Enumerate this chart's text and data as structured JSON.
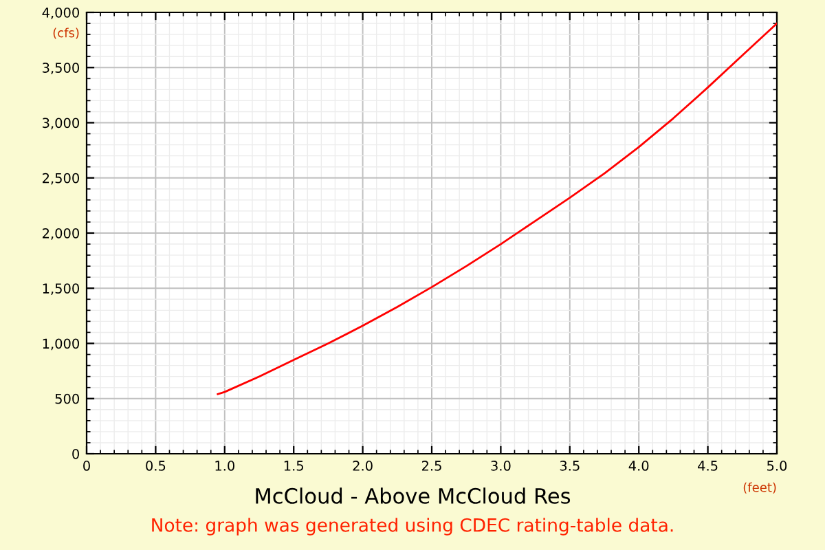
{
  "chart_data": {
    "type": "line",
    "title": "McCloud - Above McCloud Res",
    "xlabel": "(feet)",
    "ylabel": "(cfs)",
    "annotations": [
      "Note: graph was generated using CDEC rating-table data."
    ],
    "x": [
      0.95,
      1.0,
      1.25,
      1.5,
      1.75,
      2.0,
      2.25,
      2.5,
      2.75,
      3.0,
      3.25,
      3.5,
      3.75,
      4.0,
      4.25,
      4.5,
      4.75,
      5.0
    ],
    "series": [
      {
        "color": "#ff0000",
        "values": [
          540,
          560,
          700,
          850,
          1000,
          1160,
          1330,
          1510,
          1700,
          1900,
          2110,
          2320,
          2540,
          2780,
          3040,
          3320,
          3610,
          3900
        ]
      }
    ],
    "xlim": [
      0,
      5
    ],
    "xticks": [
      0,
      0.5,
      {
        "value": 1,
        "label": "1.0"
      },
      1.5,
      {
        "value": 2,
        "label": "2.0"
      },
      2.5,
      {
        "value": 3,
        "label": "3.0"
      },
      3.5,
      {
        "value": 4,
        "label": "4.0"
      },
      4.5,
      {
        "value": 5,
        "label": "5.0"
      }
    ],
    "ylim": [
      0,
      4000
    ],
    "yticks": [
      0,
      500,
      {
        "value": 1000,
        "label": "1,000"
      },
      {
        "value": 1500,
        "label": "1,500"
      },
      {
        "value": 2000,
        "label": "2,000"
      },
      {
        "value": 2500,
        "label": "2,500"
      },
      {
        "value": 3000,
        "label": "3,000"
      },
      {
        "value": 3500,
        "label": "3,500"
      },
      {
        "value": 4000,
        "label": "4,000"
      }
    ],
    "grid": true,
    "legend": false,
    "marker": "none",
    "line_style": "solid"
  }
}
